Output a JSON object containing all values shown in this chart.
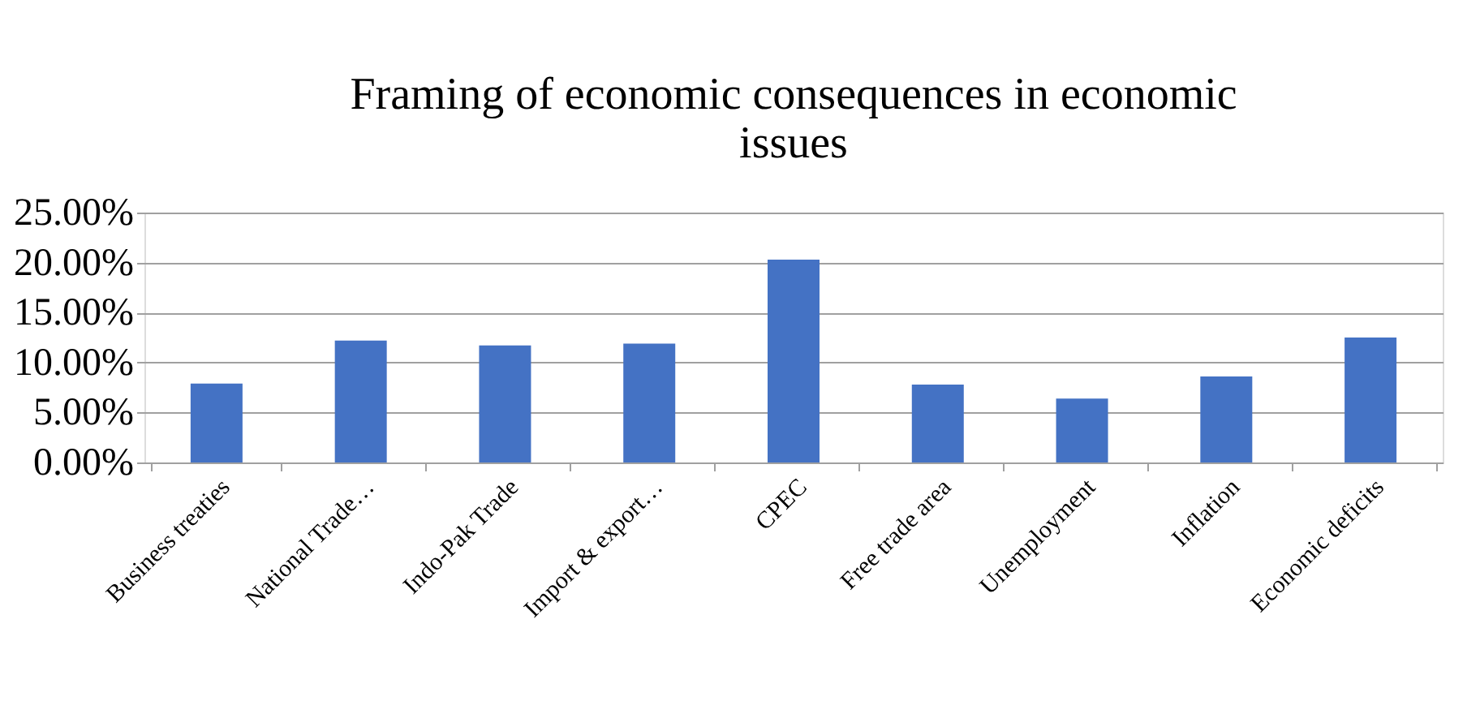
{
  "chart_data": {
    "type": "bar",
    "title": [
      "Framing of economic consequences  in economic",
      "issues"
    ],
    "categories": [
      "Business treaties",
      "National Trade…",
      "Indo-Pak Trade",
      "Import & export…",
      "CPEC",
      "Free trade area",
      "Unemployment",
      "Inflation",
      "Economic deficits"
    ],
    "values": [
      7.9,
      12.2,
      11.7,
      11.9,
      20.3,
      7.8,
      6.4,
      8.6,
      12.5
    ],
    "color": "#4472c4",
    "ylim": [
      0,
      25
    ],
    "yticks": [
      {
        "value": 0,
        "label": "0.00%"
      },
      {
        "value": 5,
        "label": "5.00%"
      },
      {
        "value": 10,
        "label": "10.00%"
      },
      {
        "value": 15,
        "label": "15.00%"
      },
      {
        "value": 20,
        "label": "20.00%"
      },
      {
        "value": 25,
        "label": "25.00%"
      }
    ],
    "grid": "y"
  }
}
